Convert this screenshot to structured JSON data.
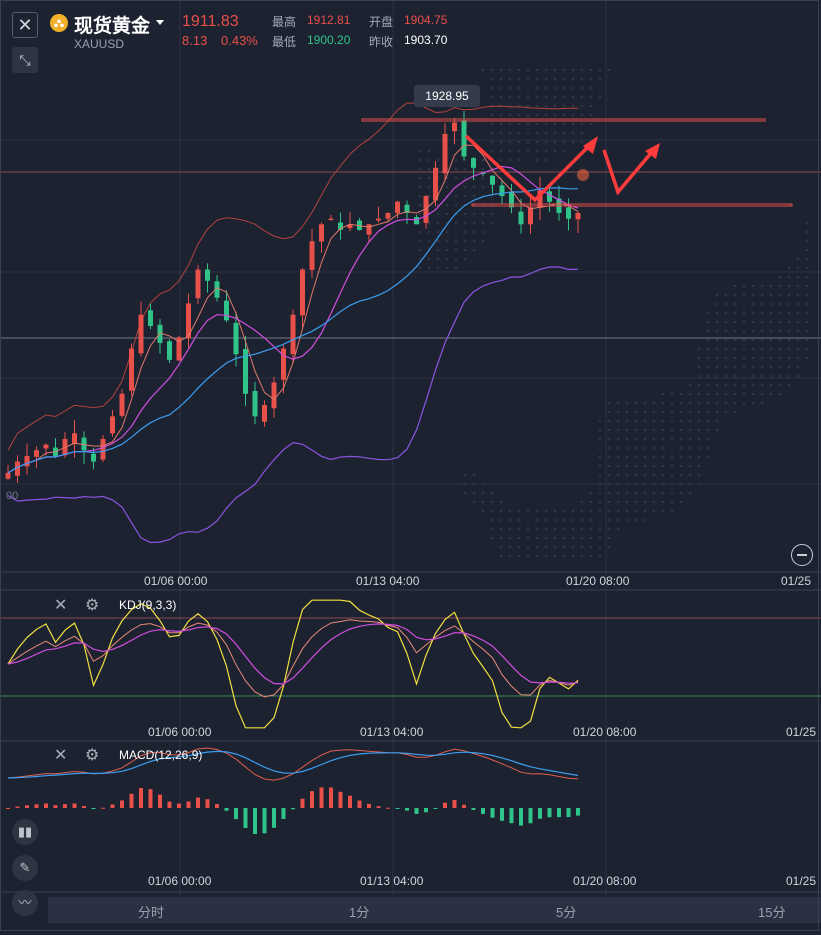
{
  "header": {
    "title": "现货黄金",
    "symbol": "XAUUSD",
    "price": "1911.83",
    "change": "8.13",
    "change_pct": "0.43%",
    "high_label": "最高",
    "high": "1912.81",
    "low_label": "最低",
    "low": "1900.20",
    "open_label": "开盘",
    "open": "1904.75",
    "prev_close_label": "昨收",
    "prev_close": "1903.70"
  },
  "main_chart": {
    "peak_label": "1928.95",
    "edge_label": "00",
    "x_labels": [
      "01/06 00:00",
      "01/13 04:00",
      "01/20 08:00",
      "01/25"
    ]
  },
  "kdj": {
    "label": "KDJ(9,3,3)",
    "x_labels": [
      "01/06 00:00",
      "01/13 04:00",
      "01/20 08:00",
      "01/25"
    ]
  },
  "macd": {
    "label": "MACD(12,26,9)",
    "x_labels": [
      "01/06 00:00",
      "01/13 04:00",
      "01/20 08:00",
      "01/25"
    ]
  },
  "timeframes": [
    "分时",
    "1分",
    "5分",
    "15分"
  ],
  "icons": [
    "close-icon",
    "shrink-icon",
    "gold-logo-icon",
    "dropdown-caret-icon",
    "gear-icon",
    "candles-icon",
    "pen-icon",
    "indicator-icon",
    "zoom-out-icon"
  ],
  "colors": {
    "up": "#e8504a",
    "down": "#2fc58a",
    "background": "#1d2230",
    "ma_blue": "#3b9ef0",
    "ma_purple": "#d04ee0",
    "boll_purple": "#8a55e0",
    "kdj_yellow": "#f0e040"
  },
  "chart_data": {
    "type": "candlestick",
    "series": [
      {
        "name": "close",
        "values": [
          1866,
          1868,
          1869,
          1870,
          1871,
          1869,
          1872,
          1873,
          1870,
          1868,
          1872,
          1876,
          1880,
          1888,
          1894,
          1892,
          1889,
          1886,
          1890,
          1896,
          1902,
          1900,
          1897,
          1893,
          1887,
          1880,
          1876,
          1878,
          1882,
          1888,
          1894,
          1902,
          1907,
          1910,
          1911,
          1909,
          1910,
          1909,
          1910,
          1911,
          1912,
          1914,
          1912,
          1910,
          1915,
          1920,
          1926,
          1928,
          1922,
          1920,
          1919,
          1917,
          1915,
          1913,
          1910,
          1913,
          1916,
          1914,
          1912,
          1911,
          1912
        ]
      }
    ],
    "overlays": [
      "bollinger",
      "ma"
    ],
    "ylim": [
      1855,
      1932
    ],
    "annotations": [
      "1928.95"
    ]
  }
}
